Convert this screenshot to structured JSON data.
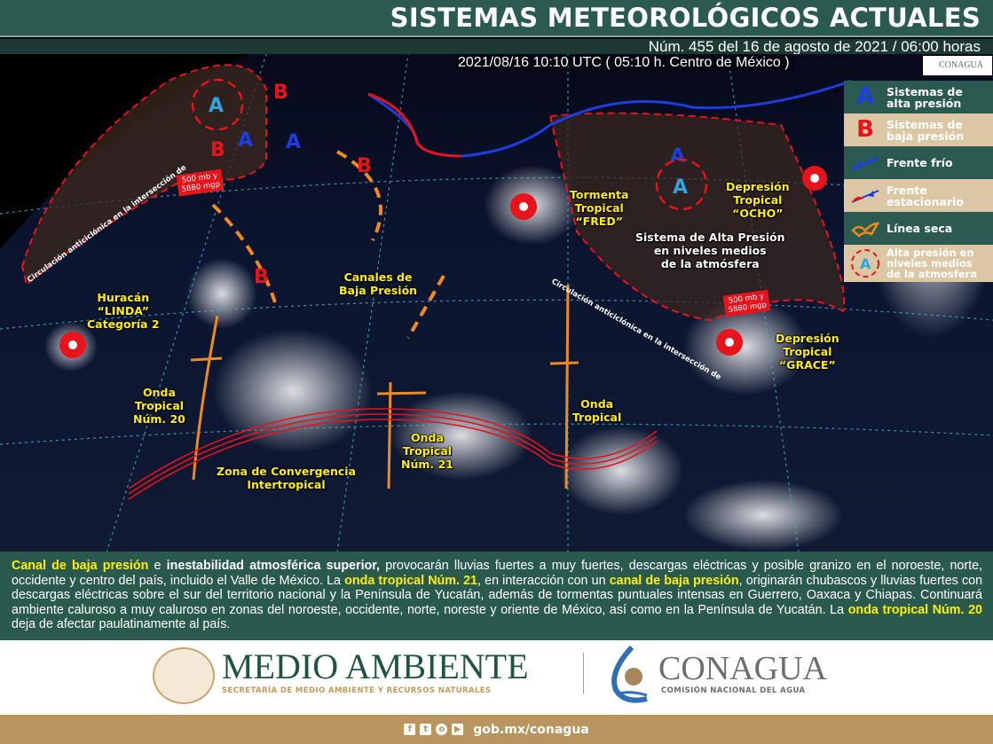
{
  "header": {
    "title": "SISTEMAS METEOROLÓGICOS ACTUALES",
    "subtitle": "Núm. 455 del 16 de agosto de 2021 / 06:00 horas"
  },
  "map": {
    "timestamp": "2021/08/16 10:10 UTC ( 05:10 h. Centro de México )",
    "logo_text": "CONAGUA",
    "labels": {
      "linda": [
        "Huracán",
        "“LINDA”",
        "Categoría 2"
      ],
      "onda20": [
        "Onda",
        "Tropical",
        "Núm. 20"
      ],
      "zci": [
        "Zona de Convergencia",
        "Intertropical"
      ],
      "canales": [
        "Canales de",
        "Baja Presión"
      ],
      "onda21": [
        "Onda",
        "Tropical",
        "Núm. 21"
      ],
      "fred": [
        "Tormenta",
        "Tropical",
        "“FRED”"
      ],
      "onda": [
        "Onda",
        "Tropical"
      ],
      "alta_medios": [
        "Sistema de Alta Presión",
        "en niveles medios",
        "de la atmósfera"
      ],
      "ocho": [
        "Depresión",
        "Tropical",
        "“OCHO”"
      ],
      "grace": [
        "Depresión",
        "Tropical",
        "“GRACE”"
      ]
    },
    "box_500": [
      "500 mb y",
      "5880 mgp"
    ],
    "circulacion": "Circulación anticiclónica en la intersección de",
    "symbols": {
      "high": "A",
      "low": "B"
    }
  },
  "legend": [
    {
      "icon": "high-pressure-icon",
      "symbol": "A",
      "label": [
        "Sistemas de",
        "alta presión"
      ]
    },
    {
      "icon": "low-pressure-icon",
      "symbol": "B",
      "label": [
        "Sistemas de",
        "baja presión"
      ]
    },
    {
      "icon": "cold-front-icon",
      "label": [
        "Frente frío"
      ]
    },
    {
      "icon": "stationary-front-icon",
      "label": [
        "Frente",
        "estacionario"
      ]
    },
    {
      "icon": "dry-line-icon",
      "label": [
        "Línea seca"
      ]
    },
    {
      "icon": "mid-level-high-icon",
      "symbol": "A",
      "label": [
        "Alta presión en",
        "niveles medios",
        "de la atmosfera"
      ]
    }
  ],
  "colors": {
    "header": "#2b5b50",
    "legend_light": "#dcc7a4",
    "highlight": "#ffef00",
    "high": "#1d3de0",
    "low": "#e8131b",
    "dry_line": "#f08a1c",
    "footer": "#b8955f"
  },
  "forecast": {
    "p1": "Canal de baja presión",
    "p2": " e ",
    "p3": "inestabilidad atmosférica superior,",
    "p4": " provocarán lluvias fuertes a muy fuertes, descargas eléctricas y posible granizo en el noroeste, norte, occidente y centro del país, incluido el Valle de México. La ",
    "p5": "onda tropical Núm. 21",
    "p6": ", en interacción con un ",
    "p7": "canal de baja presión",
    "p8": ", originarán chubascos y lluvias fuertes con descargas eléctricas sobre el sur del territorio nacional y la Península de Yucatán, además de tormentas puntuales intensas en Guerrero, Oaxaca y Chiapas. Continuará ambiente caluroso a muy caluroso en zonas del noroeste, occidente, norte, noreste y oriente de México, así como en la Península de Yucatán. La ",
    "p9": "onda tropical Núm. 20",
    "p10": " deja de afectar paulatinamente al país."
  },
  "logos": {
    "semarnat_title": "MEDIO AMBIENTE",
    "semarnat_sub": "SECRETARÍA DE MEDIO AMBIENTE Y RECURSOS NATURALES",
    "conagua_title": "CONAGUA",
    "conagua_sub": "COMISIÓN NACIONAL DEL AGUA"
  },
  "footer": {
    "url": "gob.mx/conagua",
    "social": [
      "facebook-icon",
      "twitter-icon",
      "instagram-icon",
      "youtube-icon"
    ]
  }
}
